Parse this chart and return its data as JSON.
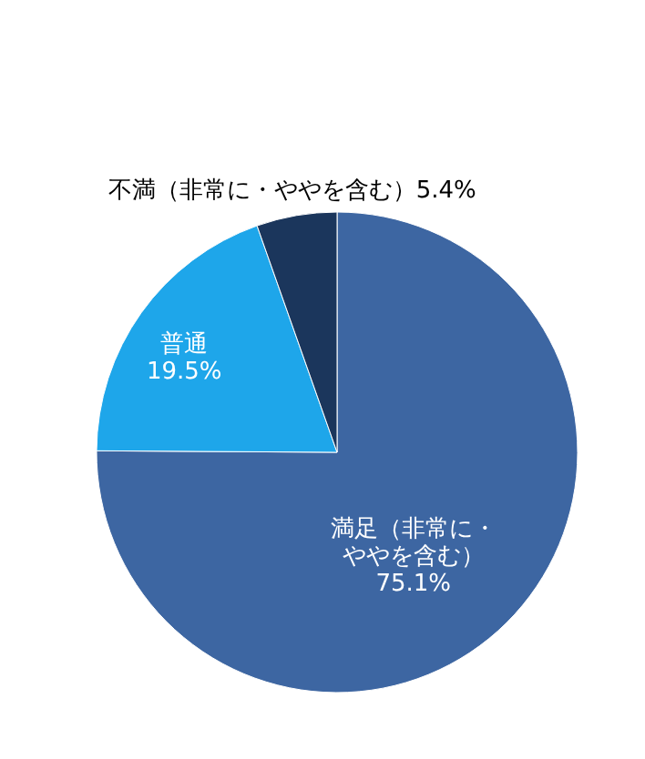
{
  "chart_data": {
    "type": "pie",
    "categories": [
      "満足（非常に・ややを含む）",
      "普通",
      "不満（非常に・ややを含む）"
    ],
    "values": [
      75.1,
      19.5,
      5.4
    ],
    "value_labels": [
      "75.1%",
      "19.5%",
      "5.4%"
    ],
    "colors": [
      "#3d66a2",
      "#1ea6ea",
      "#1b365c"
    ]
  }
}
